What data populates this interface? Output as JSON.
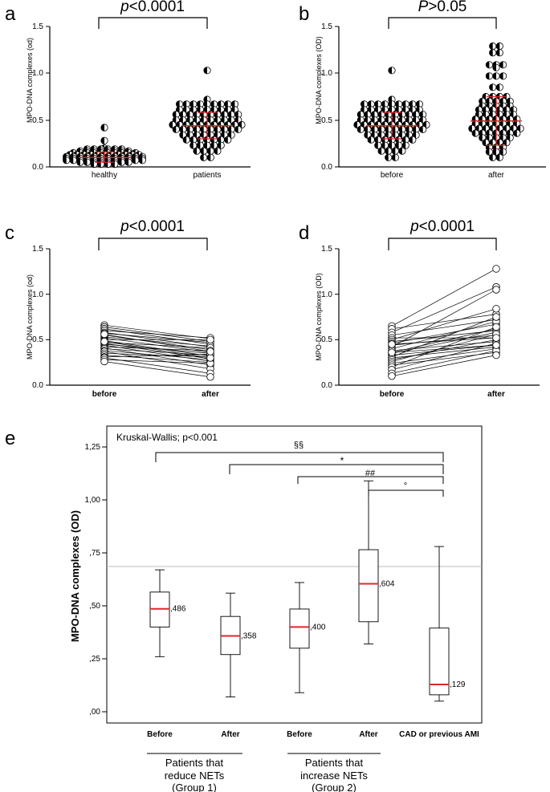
{
  "panel_letters": {
    "a": "a",
    "b": "b",
    "c": "c",
    "d": "d",
    "e": "e"
  },
  "pvalues": {
    "a": {
      "sym": "p",
      "rest": "<0.0001"
    },
    "b": {
      "sym": "P",
      "rest": ">0.05"
    },
    "c": {
      "sym": "p",
      "rest": "<0.0001"
    },
    "d": {
      "sym": "p",
      "rest": "<0.0001"
    }
  },
  "ylabels": {
    "a": "MPO-DNA complexes (od)",
    "b": "MPO-DNA complexes (OD)",
    "c": "MPO-DNA complexes (od)",
    "d": "MPO-DNA complexes (OD)",
    "e": "MPO-DNA complexes (OD)"
  },
  "ticks_ab": [
    "0.0",
    "0.5",
    "1.0",
    "1.5"
  ],
  "ticks_e": [
    ",00",
    ",25",
    ",50",
    ",75",
    "1,00",
    "1,25"
  ],
  "e_text": {
    "kruskal": "Kruskal-Wallis; p<0.001",
    "sig": [
      "§§",
      "*",
      "##",
      "°"
    ],
    "group1": [
      "Patients that",
      "reduce NETs",
      "(Group 1)"
    ],
    "group2": [
      "Patients that",
      "increase NETs",
      "(Group 2)"
    ]
  },
  "colors": {
    "median": "#e0262a",
    "axis": "#000000",
    "marker_fill": "#ffffff"
  },
  "chart_data": [
    {
      "type": "scatter",
      "panel": "a",
      "categories": [
        "healthy",
        "patients"
      ],
      "ylim": [
        0,
        1.5
      ],
      "yticks": [
        0,
        0.5,
        1.0,
        1.5
      ],
      "series": [
        {
          "name": "healthy",
          "values": [
            0.42,
            0.28,
            0.2,
            0.19,
            0.19,
            0.19,
            0.19,
            0.19,
            0.19,
            0.17,
            0.17,
            0.17,
            0.17,
            0.17,
            0.17,
            0.17,
            0.17,
            0.15,
            0.15,
            0.15,
            0.15,
            0.15,
            0.15,
            0.15,
            0.15,
            0.15,
            0.15,
            0.13,
            0.13,
            0.13,
            0.13,
            0.13,
            0.13,
            0.13,
            0.13,
            0.13,
            0.13,
            0.13,
            0.11,
            0.11,
            0.11,
            0.11,
            0.11,
            0.11,
            0.11,
            0.11,
            0.11,
            0.11,
            0.11,
            0.11,
            0.09,
            0.09,
            0.09,
            0.09,
            0.09,
            0.09,
            0.09,
            0.09,
            0.09,
            0.09,
            0.09,
            0.09,
            0.07,
            0.07,
            0.07,
            0.07,
            0.07,
            0.07,
            0.07,
            0.07,
            0.07,
            0.07,
            0.07,
            0.07,
            0.05,
            0.05,
            0.05,
            0.05,
            0.05,
            0.05,
            0.05,
            0.05,
            0.03,
            0.03,
            0.03,
            0.03
          ]
        },
        {
          "name": "patients",
          "values": [
            1.03,
            0.72,
            0.67,
            0.67,
            0.67,
            0.67,
            0.67,
            0.67,
            0.67,
            0.67,
            0.67,
            0.61,
            0.61,
            0.61,
            0.61,
            0.61,
            0.61,
            0.61,
            0.61,
            0.61,
            0.56,
            0.56,
            0.56,
            0.56,
            0.56,
            0.56,
            0.56,
            0.56,
            0.56,
            0.56,
            0.5,
            0.5,
            0.5,
            0.5,
            0.5,
            0.5,
            0.5,
            0.5,
            0.5,
            0.5,
            0.45,
            0.45,
            0.45,
            0.45,
            0.45,
            0.45,
            0.45,
            0.45,
            0.45,
            0.45,
            0.45,
            0.4,
            0.4,
            0.4,
            0.4,
            0.4,
            0.4,
            0.4,
            0.4,
            0.4,
            0.4,
            0.34,
            0.34,
            0.34,
            0.34,
            0.34,
            0.34,
            0.34,
            0.34,
            0.29,
            0.29,
            0.29,
            0.29,
            0.29,
            0.29,
            0.29,
            0.23,
            0.23,
            0.23,
            0.23,
            0.23,
            0.17,
            0.17,
            0.17,
            0.17,
            0.1,
            0.1
          ]
        }
      ],
      "summary": [
        {
          "median": 0.1,
          "low": 0.05,
          "high": 0.16
        },
        {
          "median": 0.44,
          "low": 0.3,
          "high": 0.58
        }
      ],
      "pvalue": "p<0.0001"
    },
    {
      "type": "scatter",
      "panel": "b",
      "categories": [
        "before",
        "after"
      ],
      "ylim": [
        0,
        1.5
      ],
      "yticks": [
        0,
        0.5,
        1.0,
        1.5
      ],
      "series": [
        {
          "name": "before",
          "values": [
            1.03,
            0.72,
            0.67,
            0.67,
            0.67,
            0.67,
            0.67,
            0.67,
            0.67,
            0.67,
            0.67,
            0.61,
            0.61,
            0.61,
            0.61,
            0.61,
            0.61,
            0.61,
            0.61,
            0.61,
            0.56,
            0.56,
            0.56,
            0.56,
            0.56,
            0.56,
            0.56,
            0.56,
            0.56,
            0.56,
            0.5,
            0.5,
            0.5,
            0.5,
            0.5,
            0.5,
            0.5,
            0.5,
            0.5,
            0.5,
            0.45,
            0.45,
            0.45,
            0.45,
            0.45,
            0.45,
            0.45,
            0.45,
            0.45,
            0.45,
            0.45,
            0.4,
            0.4,
            0.4,
            0.4,
            0.4,
            0.4,
            0.4,
            0.4,
            0.4,
            0.4,
            0.34,
            0.34,
            0.34,
            0.34,
            0.34,
            0.34,
            0.34,
            0.34,
            0.29,
            0.29,
            0.29,
            0.29,
            0.29,
            0.29,
            0.29,
            0.23,
            0.23,
            0.23,
            0.23,
            0.23,
            0.17,
            0.17,
            0.17,
            0.17,
            0.1,
            0.1
          ]
        },
        {
          "name": "after",
          "values": [
            1.29,
            1.29,
            1.22,
            1.22,
            1.09,
            1.09,
            1.09,
            1.06,
            0.97,
            0.97,
            0.97,
            0.85,
            0.85,
            0.75,
            0.75,
            0.75,
            0.75,
            0.7,
            0.7,
            0.7,
            0.7,
            0.7,
            0.65,
            0.65,
            0.65,
            0.65,
            0.65,
            0.61,
            0.61,
            0.61,
            0.61,
            0.61,
            0.61,
            0.56,
            0.56,
            0.56,
            0.56,
            0.56,
            0.56,
            0.51,
            0.51,
            0.51,
            0.51,
            0.51,
            0.51,
            0.51,
            0.46,
            0.46,
            0.46,
            0.46,
            0.46,
            0.46,
            0.46,
            0.41,
            0.41,
            0.41,
            0.41,
            0.41,
            0.41,
            0.41,
            0.41,
            0.36,
            0.36,
            0.36,
            0.36,
            0.36,
            0.36,
            0.36,
            0.31,
            0.31,
            0.31,
            0.31,
            0.31,
            0.26,
            0.26,
            0.26,
            0.26,
            0.21,
            0.21,
            0.21,
            0.16,
            0.16,
            0.16,
            0.1,
            0.1
          ]
        }
      ],
      "summary": [
        {
          "median": 0.44,
          "low": 0.3,
          "high": 0.58
        },
        {
          "median": 0.49,
          "low": 0.23,
          "high": 0.75
        }
      ],
      "pvalue": "P>0.05"
    },
    {
      "type": "line",
      "panel": "c",
      "categories": [
        "before",
        "after"
      ],
      "ylim": [
        0,
        1.5
      ],
      "yticks": [
        0,
        0.5,
        1.0,
        1.5
      ],
      "pairs": [
        [
          0.66,
          0.51
        ],
        [
          0.64,
          0.48
        ],
        [
          0.62,
          0.45
        ],
        [
          0.6,
          0.52
        ],
        [
          0.58,
          0.42
        ],
        [
          0.57,
          0.47
        ],
        [
          0.55,
          0.39
        ],
        [
          0.53,
          0.43
        ],
        [
          0.52,
          0.36
        ],
        [
          0.5,
          0.5
        ],
        [
          0.49,
          0.32
        ],
        [
          0.47,
          0.41
        ],
        [
          0.46,
          0.29
        ],
        [
          0.45,
          0.35
        ],
        [
          0.44,
          0.26
        ],
        [
          0.42,
          0.38
        ],
        [
          0.41,
          0.22
        ],
        [
          0.4,
          0.33
        ],
        [
          0.38,
          0.28
        ],
        [
          0.37,
          0.18
        ],
        [
          0.35,
          0.31
        ],
        [
          0.33,
          0.25
        ],
        [
          0.31,
          0.34
        ],
        [
          0.3,
          0.13
        ],
        [
          0.28,
          0.24
        ],
        [
          0.26,
          0.09
        ],
        [
          0.48,
          0.3
        ],
        [
          0.56,
          0.37
        ]
      ],
      "pvalue": "p<0.0001"
    },
    {
      "type": "line",
      "panel": "d",
      "categories": [
        "before",
        "after"
      ],
      "ylim": [
        0,
        1.5
      ],
      "yticks": [
        0,
        0.5,
        1.0,
        1.5
      ],
      "pairs": [
        [
          0.65,
          1.28
        ],
        [
          0.62,
          0.78
        ],
        [
          0.58,
          1.08
        ],
        [
          0.55,
          0.72
        ],
        [
          0.52,
          0.52
        ],
        [
          0.5,
          0.84
        ],
        [
          0.48,
          0.6
        ],
        [
          0.46,
          0.67
        ],
        [
          0.44,
          0.55
        ],
        [
          0.42,
          1.05
        ],
        [
          0.4,
          0.7
        ],
        [
          0.38,
          0.48
        ],
        [
          0.36,
          0.62
        ],
        [
          0.35,
          0.58
        ],
        [
          0.33,
          0.44
        ],
        [
          0.31,
          0.75
        ],
        [
          0.3,
          0.42
        ],
        [
          0.28,
          0.5
        ],
        [
          0.26,
          0.56
        ],
        [
          0.24,
          0.4
        ],
        [
          0.22,
          0.36
        ],
        [
          0.2,
          0.64
        ],
        [
          0.17,
          0.46
        ],
        [
          0.13,
          0.38
        ],
        [
          0.1,
          0.33
        ],
        [
          0.45,
          0.52
        ],
        [
          0.36,
          0.44
        ]
      ],
      "pvalue": "p<0.0001"
    },
    {
      "type": "box",
      "panel": "e",
      "title": "Kruskal-Wallis; p<0.001",
      "ylabel": "MPO-DNA complexes (OD)",
      "categories": [
        "Before",
        "After",
        "Before",
        "After",
        "CAD or previous AMI"
      ],
      "ylim": [
        0,
        1.35
      ],
      "yticks": [
        0,
        0.25,
        0.5,
        0.75,
        1.0,
        1.25
      ],
      "boxes": [
        {
          "min": 0.26,
          "q1": 0.4,
          "median": 0.486,
          "q3": 0.565,
          "max": 0.67,
          "label": ",486"
        },
        {
          "min": 0.07,
          "q1": 0.27,
          "median": 0.358,
          "q3": 0.45,
          "max": 0.56,
          "label": ",358"
        },
        {
          "min": 0.09,
          "q1": 0.3,
          "median": 0.4,
          "q3": 0.485,
          "max": 0.61,
          "label": ",400"
        },
        {
          "min": 0.32,
          "q1": 0.425,
          "median": 0.604,
          "q3": 0.765,
          "max": 1.09,
          "label": ",604"
        },
        {
          "min": 0.05,
          "q1": 0.08,
          "median": 0.129,
          "q3": 0.395,
          "max": 0.78,
          "label": ",129"
        }
      ],
      "groups": [
        {
          "label": "Patients that reduce NETs (Group 1)",
          "boxes": [
            0,
            1
          ]
        },
        {
          "label": "Patients that increase NETs (Group 2)",
          "boxes": [
            2,
            3
          ]
        }
      ],
      "comparisons": [
        {
          "from": 0,
          "to": 4,
          "symbol": "§§"
        },
        {
          "from": 1,
          "to": 4,
          "symbol": "*"
        },
        {
          "from": 2,
          "to": 4,
          "symbol": "##"
        },
        {
          "from": 3,
          "to": 4,
          "symbol": "°"
        }
      ]
    }
  ]
}
